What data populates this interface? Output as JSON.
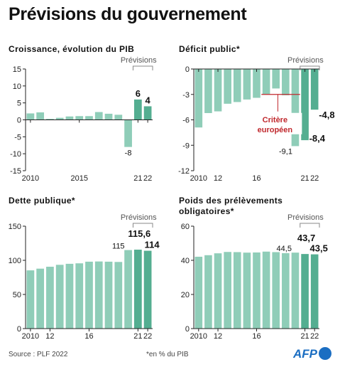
{
  "page": {
    "title": "Prévisions du gouvernement",
    "source": "Source : PLF 2022",
    "note": "*en % du PIB",
    "logo_text": "AFP"
  },
  "colors": {
    "bar": "#8fcdb8",
    "bar_forecast": "#54ae91",
    "neg_bar": "#8fcdb8",
    "critere": "#c0282d",
    "axis": "#222222",
    "grid": "#cccccc",
    "afp_blue": "#1b6ec2"
  },
  "chart_data": [
    {
      "id": "croissance",
      "type": "bar",
      "title": "Croissance, évolution du PIB",
      "forecast_label": "Prévisions",
      "x": [
        2010,
        2011,
        2012,
        2013,
        2014,
        2015,
        2016,
        2017,
        2018,
        2019,
        2020,
        2021,
        2022
      ],
      "values": [
        1.9,
        2.2,
        0.3,
        0.6,
        1.0,
        1.1,
        1.1,
        2.3,
        1.8,
        1.5,
        -8.0,
        6.0,
        4.0
      ],
      "forecast_from_index": 11,
      "ylim": [
        -15,
        15
      ],
      "yticks": [
        15,
        10,
        5,
        0,
        -5,
        -10,
        -15
      ],
      "xtick_labels": [
        "2010",
        "2015",
        "21",
        "22"
      ],
      "xtick_indices": [
        0,
        5,
        11,
        12
      ],
      "data_labels": [
        {
          "index": 10,
          "text": "-8",
          "bold": false
        },
        {
          "index": 11,
          "text": "6",
          "bold": true
        },
        {
          "index": 12,
          "text": "4",
          "bold": true
        }
      ]
    },
    {
      "id": "deficit",
      "type": "bar",
      "title": "Déficit public*",
      "forecast_label": "Prévisions",
      "x": [
        2010,
        2011,
        2012,
        2013,
        2014,
        2015,
        2016,
        2017,
        2018,
        2019,
        2020,
        2021,
        2022
      ],
      "values": [
        -6.9,
        -5.2,
        -5.0,
        -4.1,
        -3.9,
        -3.6,
        -3.4,
        -3.0,
        -2.3,
        -3.1,
        -9.1,
        -8.4,
        -4.8
      ],
      "forecast_from_index": 11,
      "ylim": [
        -12,
        0
      ],
      "yticks": [
        0,
        -3,
        -6,
        -9,
        -12
      ],
      "xtick_labels": [
        "2010",
        "12",
        "16",
        "21",
        "22"
      ],
      "xtick_indices": [
        0,
        2,
        6,
        11,
        12
      ],
      "reference_line": {
        "value": -3,
        "label_line1": "Critère",
        "label_line2": "européen"
      },
      "data_labels": [
        {
          "index": 10,
          "text": "-9,1",
          "bold": false
        },
        {
          "index": 11,
          "text": "-8,4",
          "bold": true
        },
        {
          "index": 12,
          "text": "-4,8",
          "bold": true
        }
      ]
    },
    {
      "id": "dette",
      "type": "bar",
      "title": "Dette publique*",
      "forecast_label": "Prévisions",
      "x": [
        2010,
        2011,
        2012,
        2013,
        2014,
        2015,
        2016,
        2017,
        2018,
        2019,
        2020,
        2021,
        2022
      ],
      "values": [
        85.3,
        87.8,
        90.6,
        93.4,
        94.9,
        95.6,
        98.0,
        98.3,
        98.0,
        97.6,
        115.0,
        115.6,
        114.0
      ],
      "forecast_from_index": 11,
      "ylim": [
        0,
        150
      ],
      "yticks": [
        150,
        100,
        50,
        0
      ],
      "xtick_labels": [
        "2010",
        "12",
        "16",
        "21",
        "22"
      ],
      "xtick_indices": [
        0,
        2,
        6,
        11,
        12
      ],
      "data_labels": [
        {
          "index": 10,
          "text": "115",
          "bold": false
        },
        {
          "index": 11,
          "text": "115,6",
          "bold": true
        },
        {
          "index": 12,
          "text": "114",
          "bold": true
        }
      ]
    },
    {
      "id": "prelevements",
      "type": "bar",
      "title_line1": "Poids des prélèvements",
      "title_line2": "obligatoires*",
      "forecast_label": "Prévisions",
      "x": [
        2010,
        2011,
        2012,
        2013,
        2014,
        2015,
        2016,
        2017,
        2018,
        2019,
        2020,
        2021,
        2022
      ],
      "values": [
        42.1,
        43.0,
        44.1,
        44.9,
        44.8,
        44.5,
        44.6,
        45.1,
        44.8,
        44.2,
        44.5,
        43.7,
        43.5
      ],
      "forecast_from_index": 11,
      "ylim": [
        0,
        60
      ],
      "yticks": [
        60,
        40,
        20,
        0
      ],
      "xtick_labels": [
        "2010",
        "12",
        "16",
        "21",
        "22"
      ],
      "xtick_indices": [
        0,
        2,
        6,
        11,
        12
      ],
      "data_labels": [
        {
          "index": 10,
          "text": "44,5",
          "bold": false
        },
        {
          "index": 11,
          "text": "43,7",
          "bold": true
        },
        {
          "index": 12,
          "text": "43,5",
          "bold": true
        }
      ]
    }
  ]
}
